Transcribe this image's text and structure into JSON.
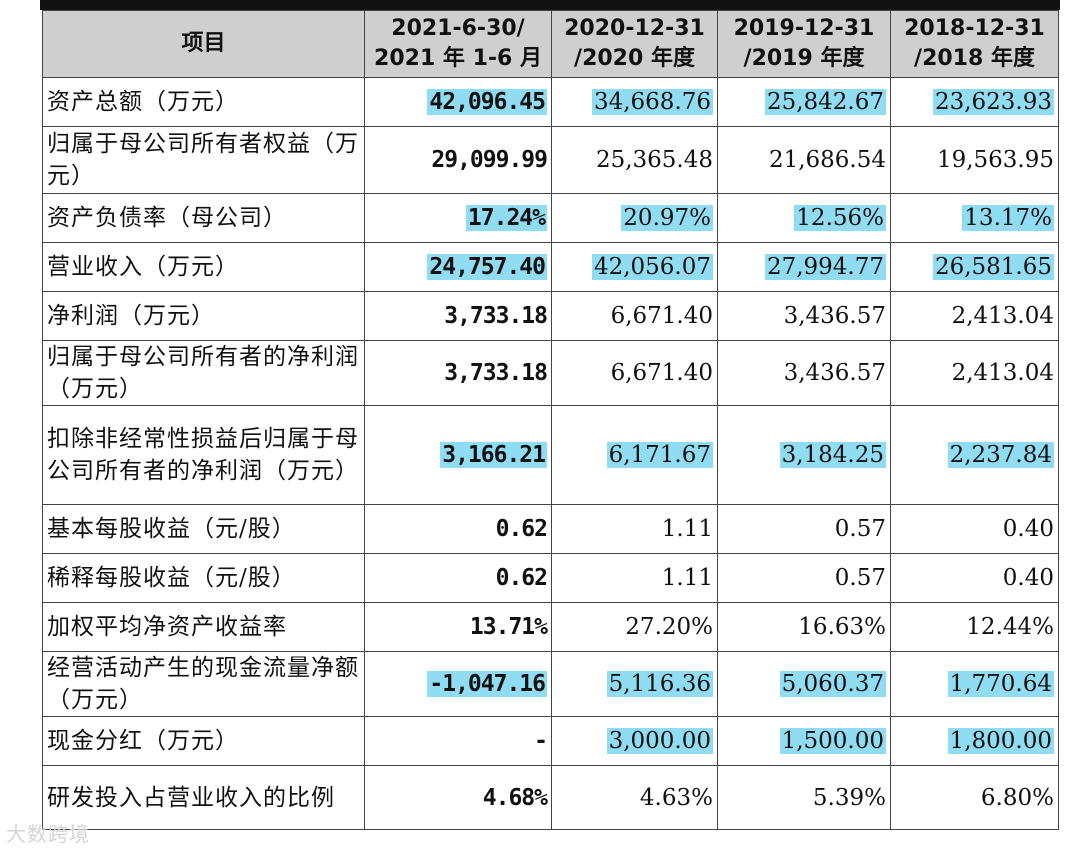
{
  "table": {
    "headers": [
      "项目",
      "2021-6-30/\n2021 年 1-6 月",
      "2020-12-31\n/2020 年度",
      "2019-12-31\n/2019 年度",
      "2018-12-31\n/2018 年度"
    ],
    "rows": [
      {
        "label": "资产总额（万元）",
        "values": [
          "42,096.45",
          "34,668.76",
          "25,842.67",
          "23,623.93"
        ],
        "highlight": [
          true,
          true,
          true,
          true
        ]
      },
      {
        "label": "归属于母公司所有者权益（万元）",
        "values": [
          "29,099.99",
          "25,365.48",
          "21,686.54",
          "19,563.95"
        ],
        "highlight": [
          false,
          false,
          false,
          false
        ]
      },
      {
        "label": "资产负债率（母公司）",
        "values": [
          "17.24%",
          "20.97%",
          "12.56%",
          "13.17%"
        ],
        "highlight": [
          true,
          true,
          true,
          true
        ]
      },
      {
        "label": "营业收入（万元）",
        "values": [
          "24,757.40",
          "42,056.07",
          "27,994.77",
          "26,581.65"
        ],
        "highlight": [
          true,
          true,
          true,
          true
        ]
      },
      {
        "label": "净利润（万元）",
        "values": [
          "3,733.18",
          "6,671.40",
          "3,436.57",
          "2,413.04"
        ],
        "highlight": [
          false,
          false,
          false,
          false
        ]
      },
      {
        "label": "归属于母公司所有者的净利润（万元）",
        "values": [
          "3,733.18",
          "6,671.40",
          "3,436.57",
          "2,413.04"
        ],
        "highlight": [
          false,
          false,
          false,
          false
        ]
      },
      {
        "label": "扣除非经常性损益后归属于母公司所有者的净利润（万元）",
        "values": [
          "3,166.21",
          "6,171.67",
          "3,184.25",
          "2,237.84"
        ],
        "highlight": [
          true,
          true,
          true,
          true
        ]
      },
      {
        "label": "基本每股收益（元/股）",
        "values": [
          "0.62",
          "1.11",
          "0.57",
          "0.40"
        ],
        "highlight": [
          false,
          false,
          false,
          false
        ]
      },
      {
        "label": "稀释每股收益（元/股）",
        "values": [
          "0.62",
          "1.11",
          "0.57",
          "0.40"
        ],
        "highlight": [
          false,
          false,
          false,
          false
        ]
      },
      {
        "label": "加权平均净资产收益率",
        "values": [
          "13.71%",
          "27.20%",
          "16.63%",
          "12.44%"
        ],
        "highlight": [
          false,
          false,
          false,
          false
        ]
      },
      {
        "label": "经营活动产生的现金流量净额（万元）",
        "values": [
          "-1,047.16",
          "5,116.36",
          "5,060.37",
          "1,770.64"
        ],
        "highlight": [
          true,
          true,
          true,
          true
        ]
      },
      {
        "label": "现金分红（万元）",
        "values": [
          "-",
          "3,000.00",
          "1,500.00",
          "1,800.00"
        ],
        "highlight": [
          false,
          true,
          true,
          true
        ]
      },
      {
        "label": "研发投入占营业收入的比例",
        "values": [
          "4.68%",
          "4.63%",
          "5.39%",
          "6.80%"
        ],
        "highlight": [
          false,
          false,
          false,
          false
        ]
      }
    ]
  },
  "colors": {
    "highlight": "#8fdcf3",
    "header_bg": "#cfcfcf"
  },
  "watermark": "大数跨境"
}
